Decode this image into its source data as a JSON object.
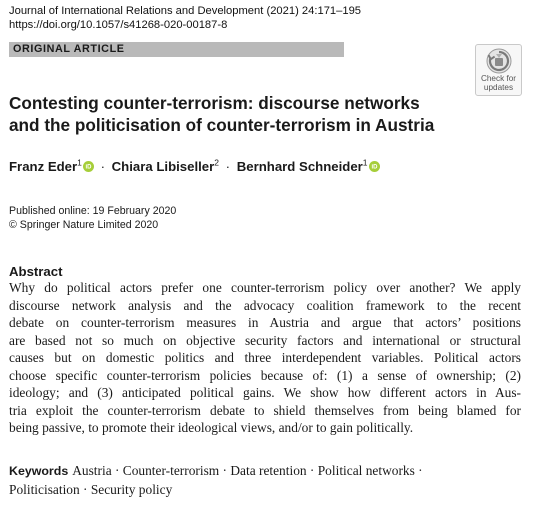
{
  "header": {
    "journal_citation": "Journal of International Relations and Development (2021) 24:171–195",
    "doi": "https://doi.org/10.1057/s41268-020-00187-8",
    "article_type": "ORIGINAL ARTICLE",
    "check_updates": {
      "line1": "Check for",
      "line2": "updates",
      "icon": "check-for-updates-icon"
    }
  },
  "title": {
    "line1": "Contesting counter-terrorism: discourse networks",
    "line2": "and the politicisation of counter-terrorism in Austria"
  },
  "authors": [
    {
      "name": "Franz Eder",
      "affiliation": "1",
      "orcid": true
    },
    {
      "name": "Chiara Libiseller",
      "affiliation": "2",
      "orcid": false
    },
    {
      "name": "Bernhard Schneider",
      "affiliation": "1",
      "orcid": true
    }
  ],
  "author_separator": "·",
  "publication": {
    "published_online": "Published online: 19 February 2020",
    "copyright": "© Springer Nature Limited 2020"
  },
  "abstract": {
    "heading": "Abstract",
    "lines": [
      "Why do political actors prefer one counter-terrorism policy over another? We apply",
      "discourse network analysis and the advocacy coalition framework to the recent",
      "debate on counter-terrorism measures in Austria and argue that actors’ positions",
      "are based not so much on objective security factors and international or structural",
      "causes but on domestic politics and three interdependent variables. Political actors",
      "choose specific counter-terrorism policies because of: (1) a sense of ownership; (2)",
      "ideology; and (3) anticipated political gains. We show how different actors in Aus-",
      "tria exploit the counter-terrorism debate to shield themselves from being blamed for",
      "being passive, to promote their ideological views, and/or to gain politically."
    ]
  },
  "keywords": {
    "label": "Keywords",
    "line1": "Austria · Counter-terrorism · Data retention · Political networks ·",
    "line2": "Politicisation · Security policy"
  },
  "colors": {
    "article_bar": "#b9b9b9",
    "orcid_green": "#a6ce39",
    "text": "#1a1a1a"
  }
}
